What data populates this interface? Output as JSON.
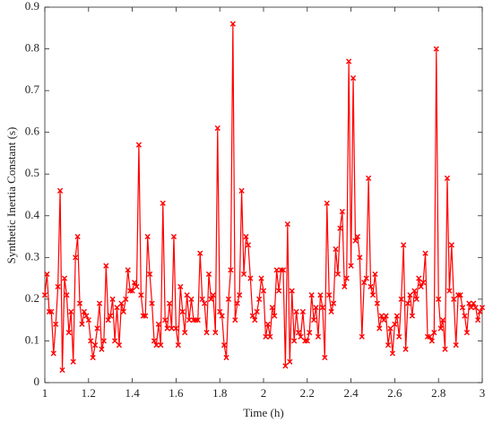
{
  "chart_data": {
    "type": "line",
    "x_label": "Time (h)",
    "y_label": "Synthetic Inertia Constant (s)",
    "xlim": [
      1,
      3
    ],
    "xticks": [
      1,
      1.2,
      1.4,
      1.6,
      1.8,
      2,
      2.2,
      2.4,
      2.6,
      2.8,
      3
    ],
    "ylim": [
      0,
      0.9
    ],
    "yticks": [
      0,
      0.1,
      0.2,
      0.3,
      0.4,
      0.5,
      0.6,
      0.7,
      0.8,
      0.9
    ],
    "grid": false,
    "marker": "x",
    "x": [
      1,
      1.01,
      1.02,
      1.03,
      1.04,
      1.05,
      1.06,
      1.07,
      1.08,
      1.09,
      1.1,
      1.11,
      1.12,
      1.13,
      1.14,
      1.15,
      1.16,
      1.17,
      1.18,
      1.19,
      1.2,
      1.21,
      1.22,
      1.23,
      1.24,
      1.25,
      1.26,
      1.27,
      1.28,
      1.29,
      1.3,
      1.31,
      1.32,
      1.33,
      1.34,
      1.35,
      1.36,
      1.37,
      1.38,
      1.39,
      1.4,
      1.41,
      1.42,
      1.43,
      1.44,
      1.45,
      1.46,
      1.47,
      1.48,
      1.49,
      1.5,
      1.51,
      1.52,
      1.53,
      1.54,
      1.55,
      1.56,
      1.57,
      1.58,
      1.59,
      1.6,
      1.61,
      1.62,
      1.63,
      1.64,
      1.65,
      1.66,
      1.67,
      1.68,
      1.69,
      1.7,
      1.71,
      1.72,
      1.73,
      1.74,
      1.75,
      1.76,
      1.77,
      1.78,
      1.79,
      1.8,
      1.81,
      1.82,
      1.83,
      1.84,
      1.85,
      1.86,
      1.87,
      1.88,
      1.89,
      1.9,
      1.91,
      1.92,
      1.93,
      1.94,
      1.95,
      1.96,
      1.97,
      1.98,
      1.99,
      2,
      2.01,
      2.02,
      2.03,
      2.04,
      2.05,
      2.06,
      2.07,
      2.08,
      2.09,
      2.1,
      2.11,
      2.12,
      2.13,
      2.14,
      2.15,
      2.16,
      2.17,
      2.18,
      2.19,
      2.2,
      2.21,
      2.22,
      2.23,
      2.24,
      2.25,
      2.26,
      2.27,
      2.28,
      2.29,
      2.3,
      2.31,
      2.32,
      2.33,
      2.34,
      2.35,
      2.36,
      2.37,
      2.38,
      2.39,
      2.4,
      2.41,
      2.42,
      2.43,
      2.44,
      2.45,
      2.46,
      2.47,
      2.48,
      2.49,
      2.5,
      2.51,
      2.52,
      2.53,
      2.54,
      2.55,
      2.56,
      2.57,
      2.58,
      2.59,
      2.6,
      2.61,
      2.62,
      2.63,
      2.64,
      2.65,
      2.66,
      2.67,
      2.68,
      2.69,
      2.7,
      2.71,
      2.72,
      2.73,
      2.74,
      2.75,
      2.76,
      2.77,
      2.78,
      2.79,
      2.8,
      2.81,
      2.82,
      2.83,
      2.84,
      2.85,
      2.86,
      2.87,
      2.88,
      2.89,
      2.9,
      2.91,
      2.92,
      2.93,
      2.94,
      2.95,
      2.96,
      2.97,
      2.98,
      2.99,
      3
    ],
    "series": [
      {
        "color": "#ff0000",
        "values": [
          0.21,
          0.26,
          0.17,
          0.17,
          0.07,
          0.14,
          0.23,
          0.46,
          0.03,
          0.25,
          0.21,
          0.12,
          0.17,
          0.05,
          0.3,
          0.35,
          0.19,
          0.14,
          0.17,
          0.16,
          0.15,
          0.1,
          0.06,
          0.09,
          0.13,
          0.19,
          0.08,
          0.1,
          0.28,
          0.15,
          0.16,
          0.2,
          0.1,
          0.18,
          0.09,
          0.19,
          0.17,
          0.2,
          0.27,
          0.22,
          0.22,
          0.24,
          0.23,
          0.57,
          0.21,
          0.16,
          0.16,
          0.35,
          0.26,
          0.19,
          0.1,
          0.09,
          0.14,
          0.09,
          0.43,
          0.15,
          0.13,
          0.19,
          0.13,
          0.35,
          0.13,
          0.09,
          0.23,
          0.17,
          0.12,
          0.21,
          0.15,
          0.2,
          0.15,
          0.15,
          0.15,
          0.31,
          0.2,
          0.19,
          0.12,
          0.26,
          0.2,
          0.21,
          0.12,
          0.61,
          0.17,
          0.16,
          0.09,
          0.06,
          0.2,
          0.27,
          0.86,
          0.15,
          0.19,
          0.21,
          0.46,
          0.26,
          0.35,
          0.33,
          0.25,
          0.16,
          0.15,
          0.17,
          0.2,
          0.25,
          0.22,
          0.11,
          0.14,
          0.11,
          0.18,
          0.16,
          0.27,
          0.22,
          0.27,
          0.27,
          0.04,
          0.38,
          0.05,
          0.22,
          0.1,
          0.17,
          0.12,
          0.11,
          0.17,
          0.1,
          0.1,
          0.12,
          0.21,
          0.15,
          0.18,
          0.11,
          0.21,
          0.18,
          0.06,
          0.43,
          0.21,
          0.17,
          0.19,
          0.32,
          0.26,
          0.37,
          0.41,
          0.23,
          0.25,
          0.77,
          0.28,
          0.73,
          0.34,
          0.35,
          0.3,
          0.11,
          0.24,
          0.25,
          0.49,
          0.23,
          0.21,
          0.26,
          0.19,
          0.13,
          0.16,
          0.15,
          0.16,
          0.09,
          0.13,
          0.07,
          0.14,
          0.16,
          0.11,
          0.2,
          0.33,
          0.08,
          0.19,
          0.21,
          0.16,
          0.22,
          0.2,
          0.25,
          0.23,
          0.24,
          0.31,
          0.11,
          0.11,
          0.1,
          0.12,
          0.8,
          0.2,
          0.13,
          0.15,
          0.08,
          0.49,
          0.22,
          0.33,
          0.2,
          0.09,
          0.21,
          0.21,
          0.18,
          0.16,
          0.12,
          0.19,
          0.18,
          0.19,
          0.18,
          0.15,
          0.17,
          0.18
        ]
      }
    ]
  }
}
